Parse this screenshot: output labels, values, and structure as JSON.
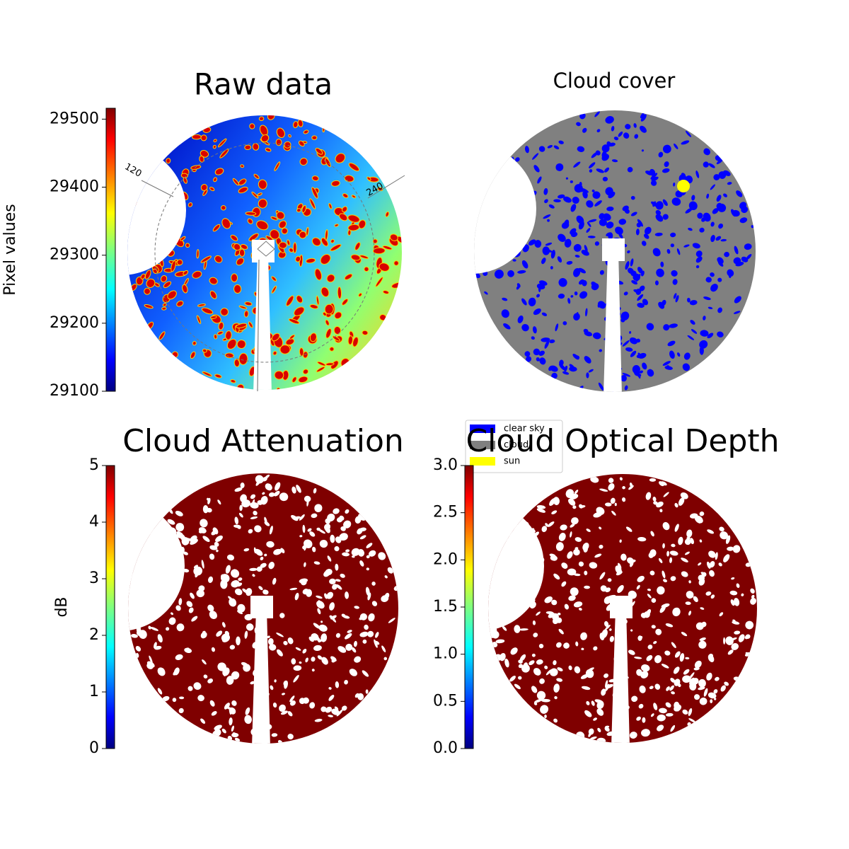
{
  "chart_data": [
    {
      "type": "image",
      "title": "Raw data",
      "colorbar": {
        "label": "Pixel values",
        "lim": [
          29100,
          29516
        ],
        "ticks": [
          29100,
          29200,
          29300,
          29400,
          29500
        ]
      },
      "azimuth_labels": [
        "120",
        "240"
      ]
    },
    {
      "type": "image",
      "title": "Cloud cover",
      "legend": [
        {
          "name": "clear sky",
          "color": "#0000ff"
        },
        {
          "name": "cloud",
          "color": "#808080"
        },
        {
          "name": "sun",
          "color": "#ffff00"
        }
      ]
    },
    {
      "type": "image",
      "title": "Cloud Attenuation",
      "colorbar": {
        "label": "dB",
        "lim": [
          0,
          5
        ],
        "ticks": [
          0,
          1,
          2,
          3,
          4,
          5
        ]
      }
    },
    {
      "type": "image",
      "title": "Cloud Optical Depth",
      "colorbar": {
        "lim": [
          0,
          3
        ],
        "ticks": [
          {
            "value": 0,
            "label": "0.0"
          },
          {
            "value": 0.5,
            "label": "0.5"
          },
          {
            "value": 1,
            "label": "1.0"
          },
          {
            "value": 1.5,
            "label": "1.5"
          },
          {
            "value": 2,
            "label": "2.0"
          },
          {
            "value": 2.5,
            "label": "2.5"
          },
          {
            "value": 3,
            "label": "3.0"
          }
        ]
      }
    }
  ]
}
